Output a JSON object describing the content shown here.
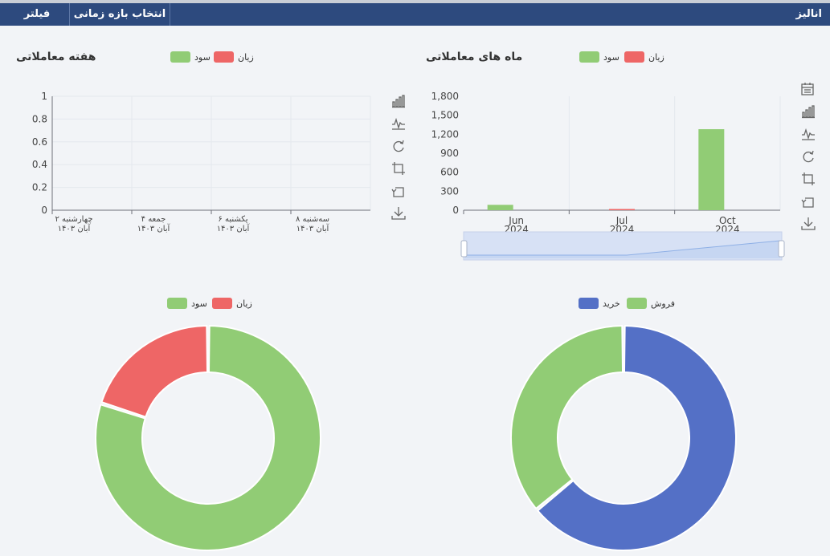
{
  "topbar": {
    "title": "انالیز",
    "tabs": [
      {
        "label": "فیلتر"
      },
      {
        "label": "انتخاب بازه زمانی"
      }
    ]
  },
  "colors": {
    "profit": "#91cc75",
    "loss": "#ee6666",
    "buy": "#5470c6",
    "sell": "#91cc75",
    "topbar": "#2d4a7e"
  },
  "toolbar_icons": [
    "calendar-icon",
    "bar-chart-icon",
    "line-chart-icon",
    "restore-icon",
    "zoom-crop-icon",
    "zoom-back-icon",
    "download-icon"
  ],
  "chart_data": [
    {
      "id": "weekly",
      "type": "line",
      "title": "هفته معاملاتی",
      "legend": [
        {
          "name": "زیان",
          "color": "#ee6666"
        },
        {
          "name": "سود",
          "color": "#91cc75"
        }
      ],
      "categories": [
        [
          "چهارشنبه ۲",
          "آبان ۱۴۰۳"
        ],
        [
          "جمعه ۴",
          "آبان ۱۴۰۳"
        ],
        [
          "یکشنبه ۶",
          "آبان ۱۴۰۳"
        ],
        [
          "سه‌شنبه ۸",
          "آبان ۱۴۰۳"
        ]
      ],
      "yticks": [
        "0",
        "0.2",
        "0.4",
        "0.6",
        "0.8",
        "1"
      ],
      "ylim": [
        0,
        1
      ],
      "series": [
        {
          "name": "سود",
          "values": [
            0,
            0,
            0,
            0
          ]
        },
        {
          "name": "زیان",
          "values": [
            0,
            0,
            0,
            0
          ]
        }
      ],
      "grid": true
    },
    {
      "id": "monthly",
      "type": "bar",
      "title": "ماه های معاملاتی",
      "legend": [
        {
          "name": "زیان",
          "color": "#ee6666"
        },
        {
          "name": "سود",
          "color": "#91cc75"
        }
      ],
      "categories": [
        [
          "Jun",
          "2024"
        ],
        [
          "Jul",
          "2024"
        ],
        [
          "Oct",
          "2024"
        ]
      ],
      "yticks": [
        "0",
        "300",
        "600",
        "900",
        "1,200",
        "1,500",
        "1,800"
      ],
      "ylim": [
        0,
        1800
      ],
      "series": [
        {
          "name": "سود",
          "values": [
            85,
            0,
            1280
          ]
        },
        {
          "name": "زیان",
          "values": [
            0,
            12,
            0
          ]
        }
      ],
      "grid": true,
      "datazoom": true
    },
    {
      "id": "profit-loss-pie",
      "type": "pie",
      "legend": [
        {
          "name": "زیان",
          "color": "#ee6666"
        },
        {
          "name": "سود",
          "color": "#91cc75"
        }
      ],
      "slices": [
        {
          "name": "سود",
          "value": 80,
          "color": "#91cc75"
        },
        {
          "name": "زیان",
          "value": 20,
          "color": "#ee6666"
        }
      ]
    },
    {
      "id": "buy-sell-pie",
      "type": "pie",
      "legend": [
        {
          "name": "خرید",
          "color": "#5470c6"
        },
        {
          "name": "فروش",
          "color": "#91cc75"
        }
      ],
      "slices": [
        {
          "name": "خرید",
          "value": 64,
          "color": "#5470c6"
        },
        {
          "name": "فروش",
          "value": 36,
          "color": "#91cc75"
        }
      ]
    }
  ]
}
